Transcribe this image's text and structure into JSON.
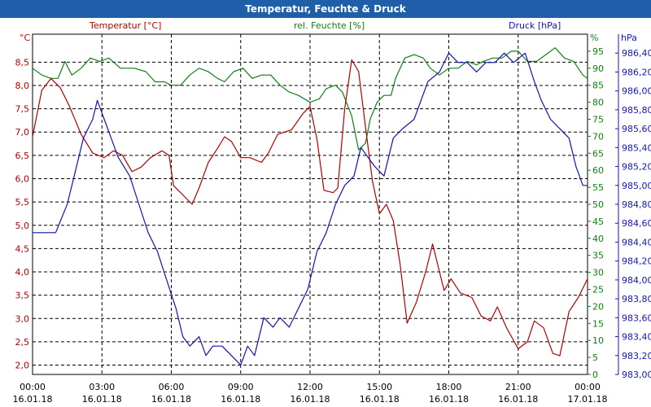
{
  "chart_data": {
    "type": "line",
    "title": "Temperatur, Feuchte & Druck",
    "x_ticks": [
      {
        "time": "00:00",
        "date": "16.01.18"
      },
      {
        "time": "03:00",
        "date": "16.01.18"
      },
      {
        "time": "06:00",
        "date": "16.01.18"
      },
      {
        "time": "09:00",
        "date": "16.01.18"
      },
      {
        "time": "12:00",
        "date": "16.01.18"
      },
      {
        "time": "15:00",
        "date": "16.01.18"
      },
      {
        "time": "18:00",
        "date": "16.01.18"
      },
      {
        "time": "21:00",
        "date": "16.01.18"
      },
      {
        "time": "00:00",
        "date": "17.01.18"
      }
    ],
    "xlim_hours": [
      0,
      24
    ],
    "axes": {
      "temperature": {
        "label": "Temperatur [°C]",
        "unit": "°C",
        "color": "#b40000",
        "ylim": [
          1.8,
          9.1
        ],
        "ticks": [
          "2,0",
          "2,5",
          "3,0",
          "3,5",
          "4,0",
          "4,5",
          "5,0",
          "5,5",
          "6,0",
          "6,5",
          "7,0",
          "7,5",
          "8,0",
          "8,5"
        ],
        "tick_values": [
          2.0,
          2.5,
          3.0,
          3.5,
          4.0,
          4.5,
          5.0,
          5.5,
          6.0,
          6.5,
          7.0,
          7.5,
          8.0,
          8.5
        ]
      },
      "humidity": {
        "label": "rel. Feuchte [%]",
        "unit": "%",
        "color": "#108010",
        "ylim": [
          0,
          100
        ],
        "ticks": [
          "0",
          "5",
          "10",
          "15",
          "20",
          "25",
          "30",
          "35",
          "40",
          "45",
          "50",
          "55",
          "60",
          "65",
          "70",
          "75",
          "80",
          "85",
          "90",
          "95"
        ],
        "tick_values": [
          0,
          5,
          10,
          15,
          20,
          25,
          30,
          35,
          40,
          45,
          50,
          55,
          60,
          65,
          70,
          75,
          80,
          85,
          90,
          95
        ]
      },
      "pressure": {
        "label": "Druck [hPa]",
        "unit": "hPa",
        "color": "#1414b4",
        "ylim": [
          983.0,
          986.6
        ],
        "ticks": [
          "983,00",
          "983,20",
          "983,40",
          "983,60",
          "983,80",
          "984,00",
          "984,20",
          "984,40",
          "984,60",
          "984,80",
          "985,00",
          "985,20",
          "985,40",
          "985,60",
          "985,80",
          "986,00",
          "986,20",
          "986,40"
        ],
        "tick_values": [
          983.0,
          983.2,
          983.4,
          983.6,
          983.8,
          984.0,
          984.2,
          984.4,
          984.6,
          984.8,
          985.0,
          985.2,
          985.4,
          985.6,
          985.8,
          986.0,
          986.2,
          986.4
        ]
      }
    },
    "series": [
      {
        "name": "Temperatur",
        "axis": "temperature",
        "color": "#b40000",
        "points": [
          [
            0,
            6.9
          ],
          [
            0.4,
            7.9
          ],
          [
            0.8,
            8.15
          ],
          [
            1.2,
            7.95
          ],
          [
            1.6,
            7.55
          ],
          [
            2.1,
            6.95
          ],
          [
            2.6,
            6.55
          ],
          [
            3.1,
            6.45
          ],
          [
            3.5,
            6.6
          ],
          [
            3.9,
            6.5
          ],
          [
            4.3,
            6.15
          ],
          [
            4.7,
            6.25
          ],
          [
            5.1,
            6.45
          ],
          [
            5.6,
            6.6
          ],
          [
            5.9,
            6.5
          ],
          [
            6.1,
            5.85
          ],
          [
            6.5,
            5.65
          ],
          [
            6.9,
            5.45
          ],
          [
            7.2,
            5.8
          ],
          [
            7.6,
            6.35
          ],
          [
            8.0,
            6.65
          ],
          [
            8.3,
            6.9
          ],
          [
            8.6,
            6.8
          ],
          [
            9.0,
            6.45
          ],
          [
            9.4,
            6.45
          ],
          [
            9.9,
            6.35
          ],
          [
            10.2,
            6.55
          ],
          [
            10.6,
            6.95
          ],
          [
            11.2,
            7.05
          ],
          [
            11.7,
            7.4
          ],
          [
            12.0,
            7.55
          ],
          [
            12.3,
            6.85
          ],
          [
            12.6,
            5.75
          ],
          [
            13.0,
            5.7
          ],
          [
            13.2,
            5.8
          ],
          [
            13.5,
            7.5
          ],
          [
            13.8,
            8.55
          ],
          [
            14.1,
            8.3
          ],
          [
            14.4,
            7.1
          ],
          [
            14.7,
            5.95
          ],
          [
            15.0,
            5.25
          ],
          [
            15.3,
            5.45
          ],
          [
            15.6,
            5.1
          ],
          [
            15.9,
            4.15
          ],
          [
            16.2,
            2.9
          ],
          [
            16.6,
            3.35
          ],
          [
            17.0,
            4.0
          ],
          [
            17.3,
            4.6
          ],
          [
            17.6,
            4.0
          ],
          [
            17.8,
            3.6
          ],
          [
            18.1,
            3.85
          ],
          [
            18.5,
            3.55
          ],
          [
            19.0,
            3.45
          ],
          [
            19.4,
            3.05
          ],
          [
            19.8,
            2.95
          ],
          [
            20.1,
            3.25
          ],
          [
            20.5,
            2.8
          ],
          [
            21.0,
            2.35
          ],
          [
            21.4,
            2.5
          ],
          [
            21.7,
            2.95
          ],
          [
            22.1,
            2.8
          ],
          [
            22.5,
            2.25
          ],
          [
            22.8,
            2.2
          ],
          [
            23.2,
            3.15
          ],
          [
            23.6,
            3.45
          ],
          [
            24.0,
            3.85
          ]
        ]
      },
      {
        "name": "rel. Feuchte",
        "axis": "humidity",
        "color": "#108010",
        "points": [
          [
            0,
            90
          ],
          [
            0.4,
            88
          ],
          [
            0.8,
            87
          ],
          [
            1.1,
            87
          ],
          [
            1.4,
            92
          ],
          [
            1.7,
            88
          ],
          [
            2.1,
            90
          ],
          [
            2.5,
            93
          ],
          [
            2.9,
            92
          ],
          [
            3.3,
            93
          ],
          [
            3.8,
            90
          ],
          [
            4.4,
            90
          ],
          [
            4.9,
            89
          ],
          [
            5.3,
            86
          ],
          [
            5.7,
            86
          ],
          [
            6.0,
            85
          ],
          [
            6.4,
            85
          ],
          [
            6.8,
            88
          ],
          [
            7.2,
            90
          ],
          [
            7.6,
            89
          ],
          [
            8.0,
            87
          ],
          [
            8.3,
            86
          ],
          [
            8.7,
            89
          ],
          [
            9.1,
            90
          ],
          [
            9.5,
            87
          ],
          [
            9.9,
            88
          ],
          [
            10.3,
            88
          ],
          [
            10.7,
            85
          ],
          [
            11.1,
            83
          ],
          [
            11.5,
            82
          ],
          [
            12.0,
            80
          ],
          [
            12.4,
            81
          ],
          [
            12.7,
            84
          ],
          [
            13.1,
            85
          ],
          [
            13.4,
            83
          ],
          [
            13.8,
            76
          ],
          [
            14.1,
            66
          ],
          [
            14.4,
            68
          ],
          [
            14.6,
            75
          ],
          [
            14.9,
            80
          ],
          [
            15.2,
            82
          ],
          [
            15.5,
            82
          ],
          [
            15.7,
            87
          ],
          [
            16.1,
            93
          ],
          [
            16.5,
            94
          ],
          [
            16.9,
            93
          ],
          [
            17.2,
            90
          ],
          [
            17.6,
            88
          ],
          [
            18.0,
            90
          ],
          [
            18.4,
            90
          ],
          [
            18.8,
            92
          ],
          [
            19.2,
            91
          ],
          [
            19.5,
            92
          ],
          [
            19.9,
            93
          ],
          [
            20.3,
            93
          ],
          [
            20.7,
            95
          ],
          [
            21.0,
            95
          ],
          [
            21.4,
            92
          ],
          [
            21.8,
            92
          ],
          [
            22.2,
            94
          ],
          [
            22.6,
            96
          ],
          [
            23.0,
            93
          ],
          [
            23.4,
            92
          ],
          [
            23.8,
            88
          ],
          [
            24.0,
            87
          ]
        ]
      },
      {
        "name": "Druck",
        "axis": "pressure",
        "color": "#1414b4",
        "points": [
          [
            0,
            984.5
          ],
          [
            1.0,
            984.5
          ],
          [
            1.5,
            984.8
          ],
          [
            1.8,
            985.1
          ],
          [
            2.2,
            985.5
          ],
          [
            2.6,
            985.7
          ],
          [
            2.8,
            985.9
          ],
          [
            3.1,
            985.7
          ],
          [
            3.4,
            985.5
          ],
          [
            3.7,
            985.3
          ],
          [
            4.2,
            985.1
          ],
          [
            4.6,
            984.8
          ],
          [
            5.0,
            984.5
          ],
          [
            5.4,
            984.3
          ],
          [
            5.8,
            984.0
          ],
          [
            6.2,
            983.7
          ],
          [
            6.5,
            983.4
          ],
          [
            6.8,
            983.3
          ],
          [
            7.2,
            983.4
          ],
          [
            7.5,
            983.2
          ],
          [
            7.8,
            983.3
          ],
          [
            8.2,
            983.3
          ],
          [
            8.6,
            983.2
          ],
          [
            9.0,
            983.1
          ],
          [
            9.3,
            983.3
          ],
          [
            9.6,
            983.2
          ],
          [
            10.0,
            983.6
          ],
          [
            10.4,
            983.5
          ],
          [
            10.7,
            983.6
          ],
          [
            11.1,
            983.5
          ],
          [
            11.5,
            983.7
          ],
          [
            11.9,
            983.9
          ],
          [
            12.3,
            984.3
          ],
          [
            12.7,
            984.5
          ],
          [
            13.1,
            984.8
          ],
          [
            13.5,
            985.0
          ],
          [
            13.9,
            985.1
          ],
          [
            14.2,
            985.4
          ],
          [
            14.5,
            985.3
          ],
          [
            14.8,
            985.2
          ],
          [
            15.2,
            985.1
          ],
          [
            15.6,
            985.5
          ],
          [
            16.0,
            985.6
          ],
          [
            16.5,
            985.7
          ],
          [
            17.1,
            986.1
          ],
          [
            17.6,
            986.2
          ],
          [
            18.0,
            986.4
          ],
          [
            18.4,
            986.3
          ],
          [
            18.8,
            986.3
          ],
          [
            19.2,
            986.2
          ],
          [
            19.6,
            986.3
          ],
          [
            20.0,
            986.3
          ],
          [
            20.4,
            986.4
          ],
          [
            20.8,
            986.3
          ],
          [
            21.3,
            986.4
          ],
          [
            21.7,
            986.1
          ],
          [
            22.0,
            985.9
          ],
          [
            22.4,
            985.7
          ],
          [
            22.8,
            985.6
          ],
          [
            23.2,
            985.5
          ],
          [
            23.5,
            985.2
          ],
          [
            23.8,
            985.0
          ],
          [
            24.0,
            985.0
          ]
        ]
      }
    ]
  }
}
